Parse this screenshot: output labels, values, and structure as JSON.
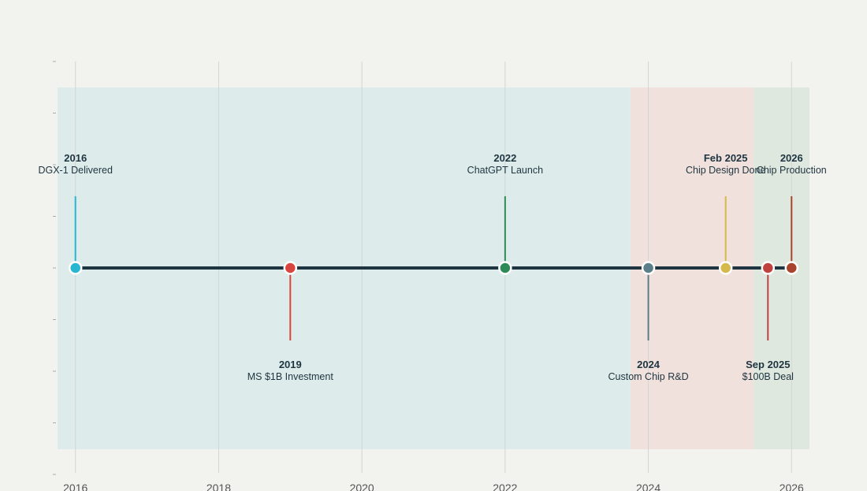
{
  "chart_data": {
    "type": "timeline",
    "title": "",
    "xlabel": "",
    "ylabel": "",
    "xlim": [
      2015.75,
      2026.25
    ],
    "x_ticks": [
      "2016",
      "2018",
      "2020",
      "2022",
      "2024",
      "2026"
    ],
    "grid": true,
    "eras": [
      {
        "start": 2015.75,
        "end": 2023.75,
        "color": "#ddecea"
      },
      {
        "start": 2023.75,
        "end": 2025.47,
        "color": "#f0e1dc"
      },
      {
        "start": 2025.47,
        "end": 2026.25,
        "color": "#dfe8df"
      }
    ],
    "events": [
      {
        "x": 2016.0,
        "year": "2016",
        "label": "DGX-1 Delivered",
        "side": "above",
        "color": "#29b6d0"
      },
      {
        "x": 2019.0,
        "year": "2019",
        "label": "MS $1B Investment",
        "side": "below",
        "color": "#d8453e"
      },
      {
        "x": 2022.0,
        "year": "2022",
        "label": "ChatGPT Launch",
        "side": "above",
        "color": "#2e8b57"
      },
      {
        "x": 2024.0,
        "year": "2024",
        "label": "Custom Chip R&D",
        "side": "below",
        "color": "#5a7f89"
      },
      {
        "x": 2025.08,
        "year": "Feb 2025",
        "label": "Chip Design Done",
        "side": "above",
        "color": "#d6b94c"
      },
      {
        "x": 2025.67,
        "year": "Sep 2025",
        "label": "$100B Deal",
        "side": "below",
        "color": "#c0423f"
      },
      {
        "x": 2026.0,
        "year": "2026",
        "label": "Chip Production",
        "side": "above",
        "color": "#a8432e"
      }
    ],
    "axis_line_color": "#1e3440"
  }
}
